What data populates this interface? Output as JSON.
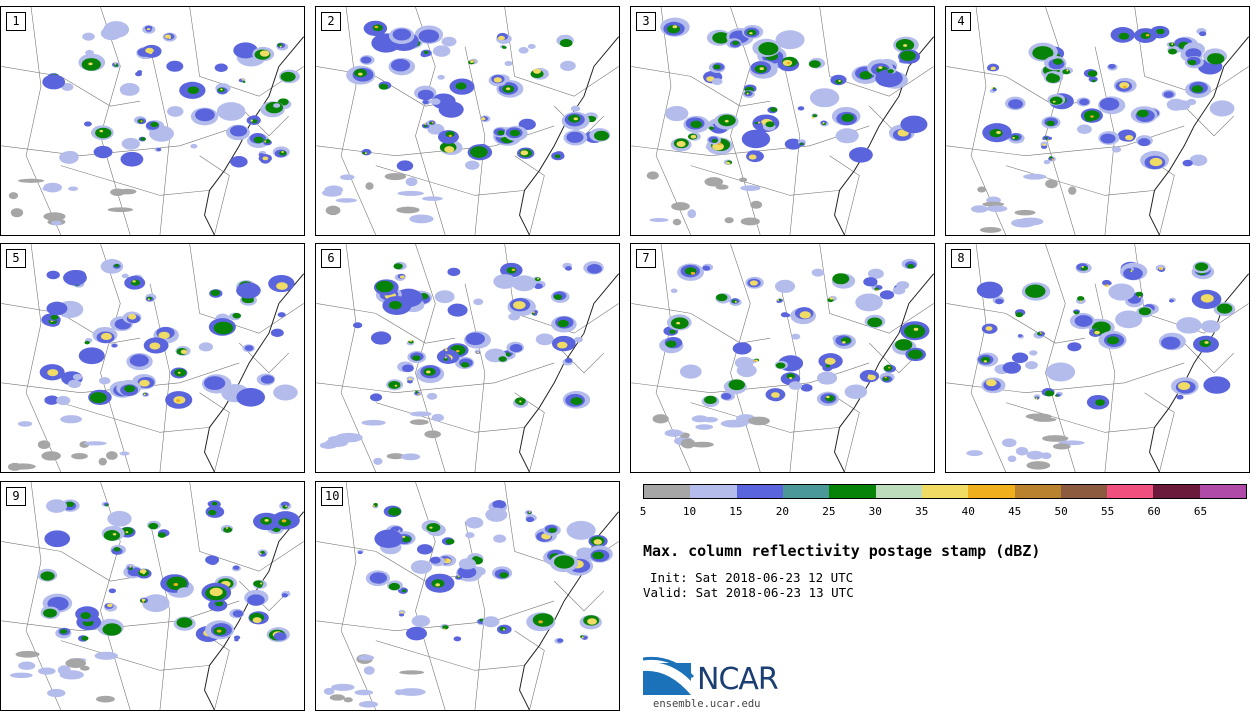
{
  "panels": [
    {
      "label": "1"
    },
    {
      "label": "2"
    },
    {
      "label": "3"
    },
    {
      "label": "4"
    },
    {
      "label": "5"
    },
    {
      "label": "6"
    },
    {
      "label": "7"
    },
    {
      "label": "8"
    },
    {
      "label": "9"
    },
    {
      "label": "10"
    }
  ],
  "colorbar": {
    "colors": [
      "#a6a6a6",
      "#b4bcec",
      "#5a64dc",
      "#4b9898",
      "#078307",
      "#bcdcbc",
      "#f0dc64",
      "#f0b01e",
      "#b8822e",
      "#8c5a3e",
      "#f0507e",
      "#6c1a3c",
      "#b04aa8"
    ],
    "ticks": [
      "5",
      "10",
      "15",
      "20",
      "25",
      "30",
      "35",
      "40",
      "45",
      "50",
      "55",
      "60",
      "65"
    ]
  },
  "title": "Max. column reflectivity postage stamp (dBZ)",
  "init": "Init: Sat 2018-06-23 12 UTC",
  "valid": "Valid: Sat 2018-06-23 13 UTC",
  "logo": {
    "text": "NCAR",
    "site": "ensemble.ucar.edu"
  }
}
